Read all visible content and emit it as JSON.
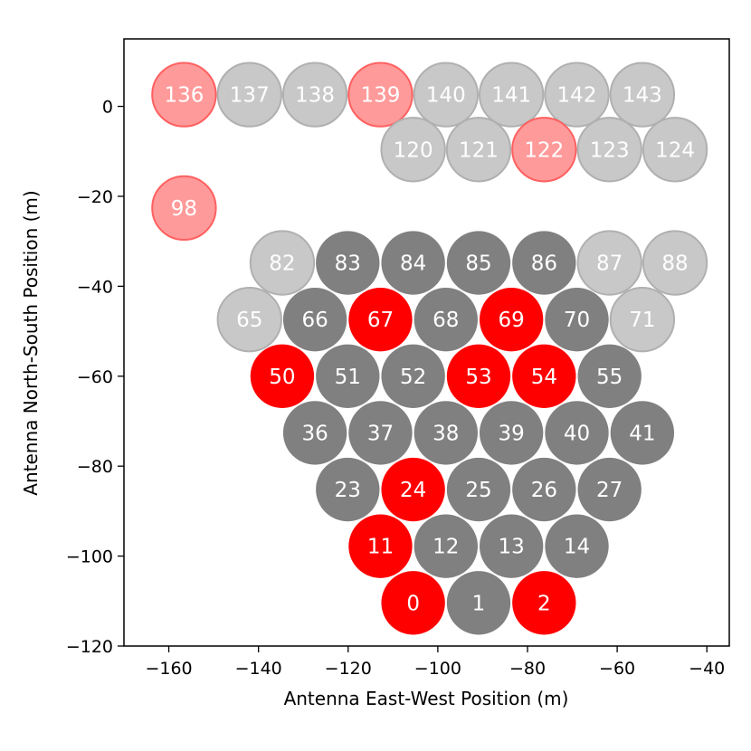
{
  "chart_data": {
    "type": "scatter",
    "title": "",
    "xlabel": "Antenna East-West Position (m)",
    "ylabel": "Antenna North-South Position (m)",
    "xlim": [
      -170,
      -35
    ],
    "ylim": [
      -120,
      15
    ],
    "xticks": [
      -160,
      -140,
      -120,
      -100,
      -80,
      -60,
      -40
    ],
    "yticks": [
      -120,
      -100,
      -80,
      -60,
      -40,
      -20,
      0
    ],
    "antenna_diameter_m": 14.6,
    "colors": {
      "active": "#808080",
      "flagged": "#ff0000",
      "inactive": "#c8c8c8",
      "inactive_flagged": "#ff9a9a",
      "inactive_flagged_edge": "#ff6060",
      "inactive_edge": "#b0b0b0"
    },
    "points": [
      {
        "id": "136",
        "x": -156.6,
        "y": 2.6,
        "status": "inactive_flagged"
      },
      {
        "id": "137",
        "x": -142.0,
        "y": 2.6,
        "status": "inactive"
      },
      {
        "id": "138",
        "x": -127.4,
        "y": 2.6,
        "status": "inactive"
      },
      {
        "id": "139",
        "x": -112.8,
        "y": 2.6,
        "status": "inactive_flagged"
      },
      {
        "id": "140",
        "x": -98.2,
        "y": 2.6,
        "status": "inactive"
      },
      {
        "id": "141",
        "x": -83.6,
        "y": 2.6,
        "status": "inactive"
      },
      {
        "id": "142",
        "x": -69.0,
        "y": 2.6,
        "status": "inactive"
      },
      {
        "id": "143",
        "x": -54.4,
        "y": 2.6,
        "status": "inactive"
      },
      {
        "id": "120",
        "x": -105.5,
        "y": -9.6,
        "status": "inactive"
      },
      {
        "id": "121",
        "x": -90.9,
        "y": -9.6,
        "status": "inactive"
      },
      {
        "id": "122",
        "x": -76.3,
        "y": -9.6,
        "status": "inactive_flagged"
      },
      {
        "id": "123",
        "x": -61.7,
        "y": -9.6,
        "status": "inactive"
      },
      {
        "id": "124",
        "x": -47.1,
        "y": -9.6,
        "status": "inactive"
      },
      {
        "id": "98",
        "x": -156.6,
        "y": -22.6,
        "status": "inactive_flagged"
      },
      {
        "id": "82",
        "x": -134.7,
        "y": -34.8,
        "status": "inactive"
      },
      {
        "id": "83",
        "x": -120.1,
        "y": -34.8,
        "status": "active"
      },
      {
        "id": "84",
        "x": -105.5,
        "y": -34.8,
        "status": "active"
      },
      {
        "id": "85",
        "x": -90.9,
        "y": -34.8,
        "status": "active"
      },
      {
        "id": "86",
        "x": -76.3,
        "y": -34.8,
        "status": "active"
      },
      {
        "id": "87",
        "x": -61.7,
        "y": -34.8,
        "status": "inactive"
      },
      {
        "id": "88",
        "x": -47.1,
        "y": -34.8,
        "status": "inactive"
      },
      {
        "id": "65",
        "x": -142.0,
        "y": -47.4,
        "status": "inactive"
      },
      {
        "id": "66",
        "x": -127.4,
        "y": -47.4,
        "status": "active"
      },
      {
        "id": "67",
        "x": -112.8,
        "y": -47.4,
        "status": "flagged"
      },
      {
        "id": "68",
        "x": -98.2,
        "y": -47.4,
        "status": "active"
      },
      {
        "id": "69",
        "x": -83.6,
        "y": -47.4,
        "status": "flagged"
      },
      {
        "id": "70",
        "x": -69.0,
        "y": -47.4,
        "status": "active"
      },
      {
        "id": "71",
        "x": -54.4,
        "y": -47.4,
        "status": "inactive"
      },
      {
        "id": "50",
        "x": -134.7,
        "y": -60.0,
        "status": "flagged"
      },
      {
        "id": "51",
        "x": -120.1,
        "y": -60.0,
        "status": "active"
      },
      {
        "id": "52",
        "x": -105.5,
        "y": -60.0,
        "status": "active"
      },
      {
        "id": "53",
        "x": -90.9,
        "y": -60.0,
        "status": "flagged"
      },
      {
        "id": "54",
        "x": -76.3,
        "y": -60.0,
        "status": "flagged"
      },
      {
        "id": "55",
        "x": -61.7,
        "y": -60.0,
        "status": "active"
      },
      {
        "id": "36",
        "x": -127.4,
        "y": -72.6,
        "status": "active"
      },
      {
        "id": "37",
        "x": -112.8,
        "y": -72.6,
        "status": "active"
      },
      {
        "id": "38",
        "x": -98.2,
        "y": -72.6,
        "status": "active"
      },
      {
        "id": "39",
        "x": -83.6,
        "y": -72.6,
        "status": "active"
      },
      {
        "id": "40",
        "x": -69.0,
        "y": -72.6,
        "status": "active"
      },
      {
        "id": "41",
        "x": -54.4,
        "y": -72.6,
        "status": "active"
      },
      {
        "id": "23",
        "x": -120.1,
        "y": -85.2,
        "status": "active"
      },
      {
        "id": "24",
        "x": -105.5,
        "y": -85.2,
        "status": "flagged"
      },
      {
        "id": "25",
        "x": -90.9,
        "y": -85.2,
        "status": "active"
      },
      {
        "id": "26",
        "x": -76.3,
        "y": -85.2,
        "status": "active"
      },
      {
        "id": "27",
        "x": -61.7,
        "y": -85.2,
        "status": "active"
      },
      {
        "id": "11",
        "x": -112.8,
        "y": -97.8,
        "status": "flagged"
      },
      {
        "id": "12",
        "x": -98.2,
        "y": -97.8,
        "status": "active"
      },
      {
        "id": "13",
        "x": -83.6,
        "y": -97.8,
        "status": "active"
      },
      {
        "id": "14",
        "x": -69.0,
        "y": -97.8,
        "status": "active"
      },
      {
        "id": "0",
        "x": -105.5,
        "y": -110.4,
        "status": "flagged"
      },
      {
        "id": "1",
        "x": -90.9,
        "y": -110.4,
        "status": "active"
      },
      {
        "id": "2",
        "x": -76.3,
        "y": -110.4,
        "status": "flagged"
      }
    ]
  }
}
